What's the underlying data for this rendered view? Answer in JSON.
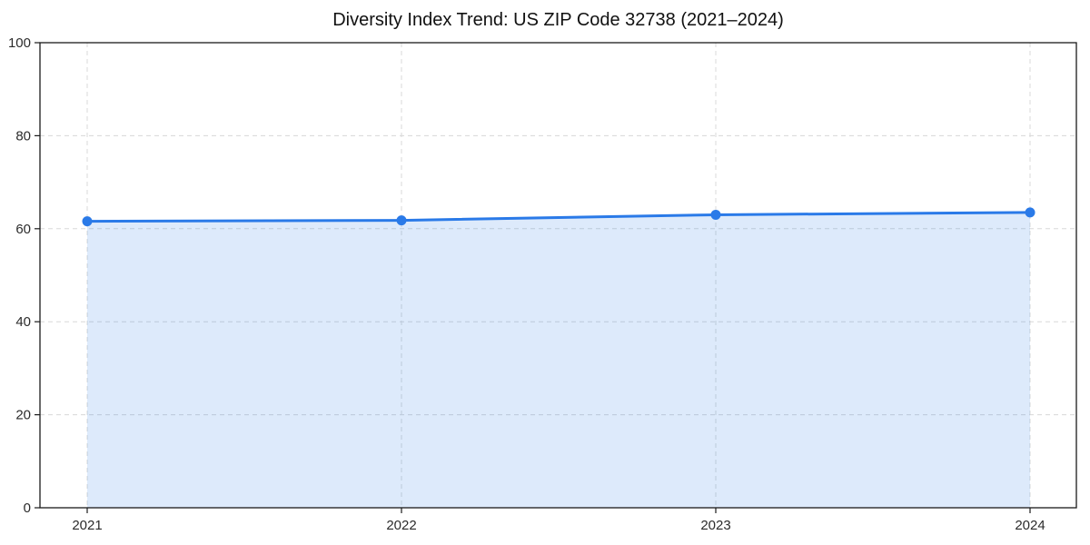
{
  "chart_data": {
    "type": "area",
    "title": "Diversity Index Trend: US ZIP Code 32738 (2021–2024)",
    "x": [
      2021,
      2022,
      2023,
      2024
    ],
    "series": [
      {
        "name": "Diversity Index",
        "values": [
          61.6,
          61.8,
          63.0,
          63.5
        ]
      }
    ],
    "xlabel": "",
    "ylabel": "",
    "ylim": [
      0,
      100
    ],
    "yticks": [
      0,
      20,
      40,
      60,
      80,
      100
    ],
    "xtick_labels": [
      "2021",
      "2022",
      "2023",
      "2024"
    ],
    "grid": "dashed",
    "legend_position": "none",
    "colors": {
      "line": "#2a7ae8",
      "fill": "#2a7ae8",
      "fill_opacity": 0.16,
      "grid": "#d8d8d8",
      "axis": "#1a1a1a",
      "tick_label": "#2b2b2b",
      "title": "#111111",
      "background": "#ffffff"
    }
  }
}
